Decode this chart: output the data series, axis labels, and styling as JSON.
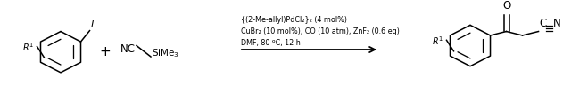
{
  "bg_color": "#ffffff",
  "condition_line1": "{(2-Me-allyl)PdCl₂}₂ (4 mol%)",
  "condition_line2": "CuBr₂ (10 mol%), CO (10 atm), ZnF₂ (0.6 eq)",
  "condition_line3": "DMF, 80 ºC, 12 h",
  "fig_width": 6.31,
  "fig_height": 1.05,
  "dpi": 100,
  "lw": 1.1
}
